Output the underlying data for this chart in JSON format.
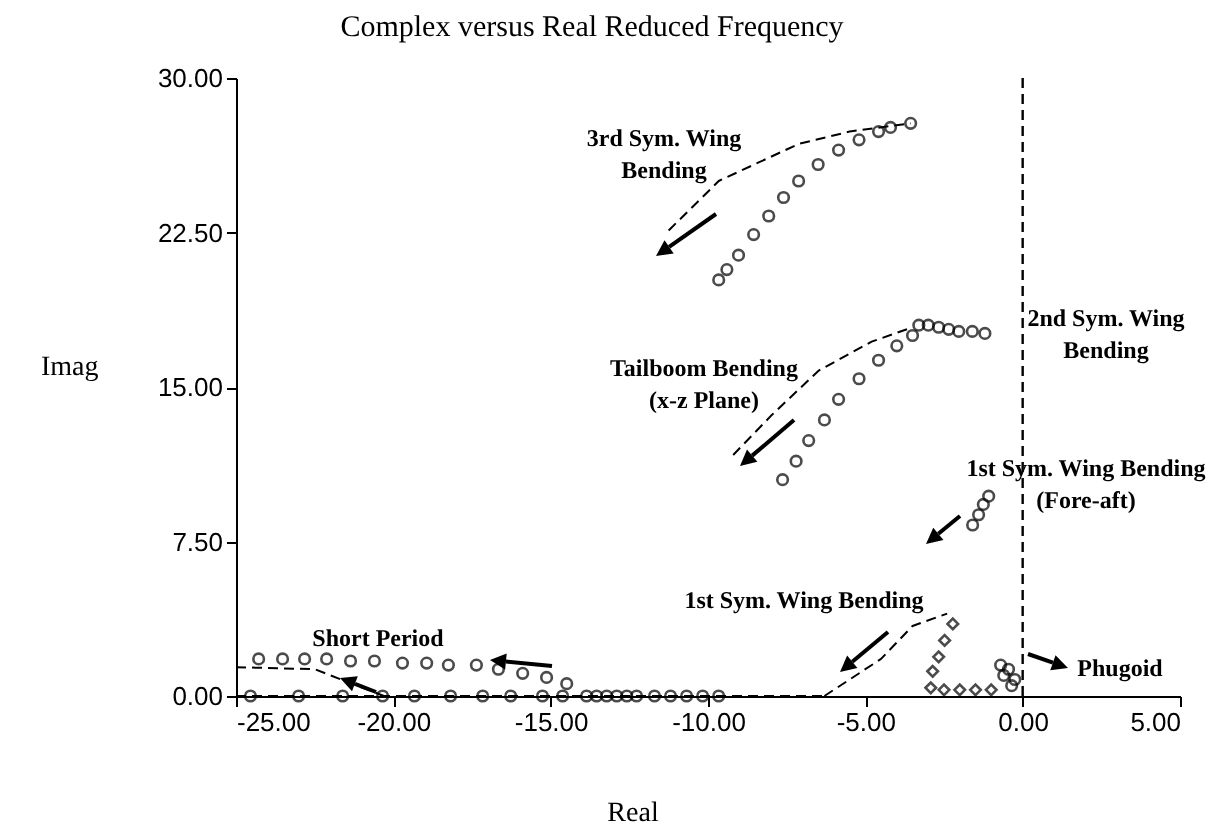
{
  "chart_data": {
    "type": "scatter",
    "title": "Complex versus Real Reduced Frequency",
    "xlabel": "Real",
    "ylabel": "Imag",
    "xlim": [
      -25,
      5
    ],
    "xticks": [
      {
        "value": -25,
        "label": "-25.00"
      },
      {
        "value": -20,
        "label": "-20.00"
      },
      {
        "value": -15,
        "label": "-15.00"
      },
      {
        "value": -10,
        "label": "-10.00"
      },
      {
        "value": -5,
        "label": "-5.00"
      },
      {
        "value": 0,
        "label": "0.00"
      },
      {
        "value": 5,
        "label": "5.00"
      }
    ],
    "ylim": [
      0,
      30
    ],
    "yticks": [
      {
        "value": 0,
        "label": "0.00"
      },
      {
        "value": 7.5,
        "label": "7.50"
      },
      {
        "value": 15,
        "label": "15.00"
      },
      {
        "value": 22.5,
        "label": "22.50"
      },
      {
        "value": 30,
        "label": "30.00"
      }
    ],
    "grid": false,
    "marker": "circle",
    "series": [
      {
        "color": "#000000",
        "x": [
          -3.56,
          -4.2,
          -4.58,
          -5.2,
          -5.85,
          -6.5,
          -7.12,
          -7.6,
          -8.07,
          -8.55,
          -9.03,
          -9.4,
          -9.66
        ],
        "values": [
          27.8,
          27.6,
          27.4,
          27.0,
          26.5,
          25.8,
          25.0,
          24.2,
          23.3,
          22.4,
          21.4,
          20.7,
          20.2
        ]
      },
      {
        "type": "line",
        "marker": "none",
        "line_style": "dashed",
        "color": "#000000",
        "x": [
          -3.56,
          -5.5,
          -7.12,
          -9.66,
          -11.25
        ],
        "values": [
          27.8,
          27.4,
          26.8,
          25.0,
          22.6
        ]
      },
      {
        "color": "#000000",
        "x": [
          -3.5,
          -4.0,
          -4.58,
          -5.2,
          -5.85,
          -6.3,
          -6.8,
          -7.2,
          -7.63
        ],
        "values": [
          17.5,
          17.0,
          16.3,
          15.4,
          14.4,
          13.4,
          12.4,
          11.4,
          10.5
        ]
      },
      {
        "type": "line",
        "marker": "none",
        "line_style": "dashed",
        "color": "#000000",
        "x": [
          -3.5,
          -4.8,
          -6.48,
          -8.0,
          -9.2
        ],
        "values": [
          17.9,
          17.2,
          15.8,
          13.6,
          11.7
        ]
      },
      {
        "color": "#000000",
        "x": [
          -3.3,
          -3.0,
          -2.67,
          -2.35,
          -2.03,
          -1.6,
          -1.2
        ],
        "values": [
          18.0,
          18.0,
          17.9,
          17.8,
          17.7,
          17.7,
          17.6
        ]
      },
      {
        "color": "#000000",
        "x": [
          -1.59,
          -1.4,
          -1.25,
          -1.08
        ],
        "values": [
          8.3,
          8.8,
          9.3,
          9.7
        ]
      },
      {
        "marker": "diamond",
        "color": "#000000",
        "x": [
          -2.22,
          -2.48,
          -2.67,
          -2.86,
          -2.92,
          -2.5,
          -2.0,
          -1.5,
          -1.0
        ],
        "values": [
          3.5,
          2.7,
          1.9,
          1.2,
          0.4,
          0.3,
          0.3,
          0.3,
          0.3
        ]
      },
      {
        "type": "line",
        "marker": "none",
        "line_style": "dashed",
        "color": "#000000",
        "x": [
          -2.4,
          -3.5,
          -4.5,
          -6.3
        ],
        "values": [
          4.0,
          3.4,
          1.8,
          0
        ]
      },
      {
        "color": "#000000",
        "x": [
          -0.6,
          -0.45,
          -0.25,
          -0.7,
          -0.35
        ],
        "values": [
          1.0,
          1.3,
          0.8,
          1.5,
          0.5
        ]
      },
      {
        "color": "#000000",
        "x": [
          -24.28,
          -23.52,
          -22.82,
          -22.12,
          -21.36,
          -20.6,
          -19.71,
          -18.94,
          -18.25,
          -17.36,
          -16.66,
          -15.89,
          -15.13,
          -14.49
        ],
        "values": [
          1.8,
          1.8,
          1.8,
          1.8,
          1.7,
          1.7,
          1.6,
          1.6,
          1.5,
          1.5,
          1.3,
          1.1,
          0.9,
          0.6
        ]
      },
      {
        "color": "#000000",
        "x": [
          -24.54,
          -23.01,
          -21.61,
          -20.34,
          -19.33,
          -18.18,
          -17.16,
          -16.27,
          -15.26,
          -14.62,
          -13.86,
          -13.54,
          -13.22,
          -12.9,
          -12.58,
          -12.27,
          -11.7,
          -11.19,
          -10.68,
          -10.17,
          -9.66
        ],
        "values": [
          0,
          0,
          0,
          0,
          0,
          0,
          0,
          0,
          0,
          0,
          0,
          0,
          0,
          0,
          0,
          0,
          0,
          0,
          0,
          0,
          0
        ]
      },
      {
        "type": "line",
        "marker": "none",
        "line_style": "dashed",
        "color": "#000000",
        "x": [
          -25,
          -6.3
        ],
        "values": [
          0,
          0
        ]
      },
      {
        "type": "line",
        "marker": "none",
        "line_style": "dashed",
        "color": "#000000",
        "x": [
          -25,
          -22.5,
          -20.3
        ],
        "values": [
          1.4,
          1.3,
          0
        ]
      }
    ],
    "ref_lines": [
      {
        "axis": "x",
        "value": 0,
        "color": "#000000",
        "line_style": "dashed"
      }
    ],
    "annotations": [
      "3rd Sym. Wing\nBending",
      "2nd Sym. Wing\nBending",
      "Tailboom Bending\n(x-z Plane)",
      "1st Sym. Wing Bending\n(Fore-aft)",
      "1st Sym. Wing Bending",
      "Short Period",
      "Phugoid"
    ]
  }
}
